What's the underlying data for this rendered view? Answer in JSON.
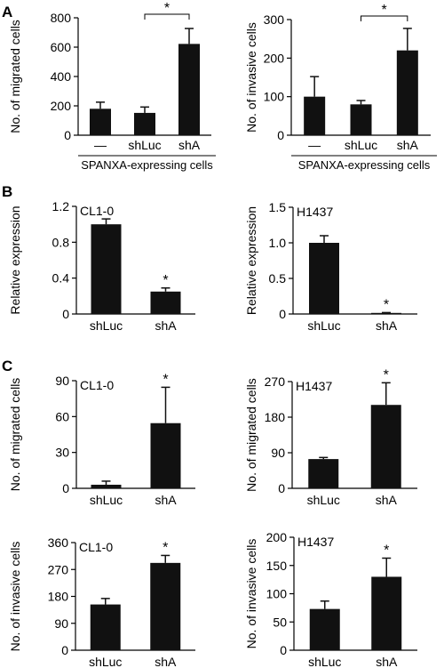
{
  "panels": [
    {
      "label": "A"
    },
    {
      "label": "B"
    },
    {
      "label": "C"
    }
  ],
  "chart_data": [
    {
      "type": "bar",
      "panel": "A",
      "inner_label": "",
      "categories": [
        "—",
        "shLuc",
        "shA"
      ],
      "values": [
        180,
        152,
        622
      ],
      "errors": [
        45,
        40,
        105
      ],
      "ylabel": "No. of migrated cells",
      "ylim": [
        0,
        800
      ],
      "yticks": [
        "0",
        "200",
        "400",
        "600",
        "800"
      ],
      "group_label": "SPANXA-expressing cells",
      "significance": [
        {
          "type": "bracket",
          "from": 1,
          "to": 2,
          "text": "*"
        }
      ]
    },
    {
      "type": "bar",
      "panel": "A",
      "inner_label": "",
      "categories": [
        "—",
        "shLuc",
        "shA"
      ],
      "values": [
        100,
        80,
        220
      ],
      "errors": [
        52,
        10,
        57
      ],
      "ylabel": "No. of invasive cells",
      "ylim": [
        0,
        300
      ],
      "yticks": [
        "0",
        "100",
        "200",
        "300"
      ],
      "group_label": "SPANXA-expressing cells",
      "significance": [
        {
          "type": "bracket",
          "from": 1,
          "to": 2,
          "text": "*"
        }
      ]
    },
    {
      "type": "bar",
      "panel": "B",
      "inner_label": "CL1-0",
      "categories": [
        "shLuc",
        "shA"
      ],
      "values": [
        1.0,
        0.25
      ],
      "errors": [
        0.06,
        0.04
      ],
      "ylabel": "Relative expression",
      "ylim": [
        0,
        1.2
      ],
      "yticks": [
        "0",
        "0.4",
        "0.8",
        "1.2"
      ],
      "group_label": "",
      "significance": [
        {
          "type": "star",
          "index": 1,
          "text": "*"
        }
      ]
    },
    {
      "type": "bar",
      "panel": "B",
      "inner_label": "H1437",
      "categories": [
        "shLuc",
        "shA"
      ],
      "values": [
        1.0,
        0.015
      ],
      "errors": [
        0.1,
        0.005
      ],
      "ylabel": "Relative expression",
      "ylim": [
        0,
        1.5
      ],
      "yticks": [
        "0",
        "0.5",
        "1.0",
        "1.5"
      ],
      "group_label": "",
      "significance": [
        {
          "type": "star",
          "index": 1,
          "text": "*"
        }
      ]
    },
    {
      "type": "bar",
      "panel": "C",
      "inner_label": "CL1-0",
      "categories": [
        "shLuc",
        "shA"
      ],
      "values": [
        3,
        54.5
      ],
      "errors": [
        3,
        30
      ],
      "ylabel": "No. of migrated cells",
      "ylim": [
        0,
        90
      ],
      "yticks": [
        "0",
        "30",
        "60",
        "90"
      ],
      "group_label": "",
      "significance": [
        {
          "type": "star",
          "index": 1,
          "text": "*"
        }
      ]
    },
    {
      "type": "bar",
      "panel": "C",
      "inner_label": "H1437",
      "categories": [
        "shLuc",
        "shA"
      ],
      "values": [
        74,
        211
      ],
      "errors": [
        4,
        56
      ],
      "ylabel": "No. of migrated cells",
      "ylim": [
        0,
        270
      ],
      "yticks": [
        "0",
        "90",
        "180",
        "270"
      ],
      "group_label": "",
      "significance": [
        {
          "type": "star",
          "index": 1,
          "text": "*"
        }
      ]
    },
    {
      "type": "bar",
      "panel": "C",
      "inner_label": "CL1-0",
      "categories": [
        "shLuc",
        "shA"
      ],
      "values": [
        153,
        292
      ],
      "errors": [
        20,
        25
      ],
      "ylabel": "No. of invasive cells",
      "ylim": [
        0,
        360
      ],
      "yticks": [
        "0",
        "90",
        "180",
        "270",
        "360"
      ],
      "group_label": "",
      "significance": [
        {
          "type": "star",
          "index": 1,
          "text": "*"
        }
      ]
    },
    {
      "type": "bar",
      "panel": "C",
      "inner_label": "H1437",
      "categories": [
        "shLuc",
        "shA"
      ],
      "values": [
        73,
        130
      ],
      "errors": [
        14,
        33
      ],
      "ylabel": "No. of invasive cells",
      "ylim": [
        0,
        200
      ],
      "yticks": [
        "0",
        "50",
        "100",
        "150",
        "200"
      ],
      "group_label": "",
      "significance": [
        {
          "type": "star",
          "index": 1,
          "text": "*"
        }
      ]
    }
  ]
}
